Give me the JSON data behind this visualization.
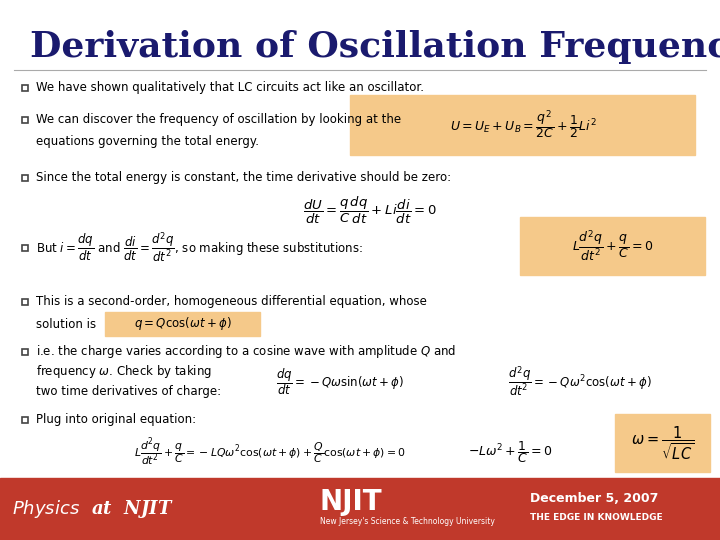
{
  "title": "Derivation of Oscillation Frequency",
  "title_color": "#1a1a6e",
  "bg_color": "#ffffff",
  "footer_bg": "#c0392b",
  "text_color": "#000000",
  "highlight_color": "#f5c98a",
  "bullet_color": "#333333",
  "footer_text": "December 5, 2007",
  "footer_right": "THE EDGE IN KNOWLEDGE",
  "footer_sub": "New Jersey's Science & Technology University"
}
